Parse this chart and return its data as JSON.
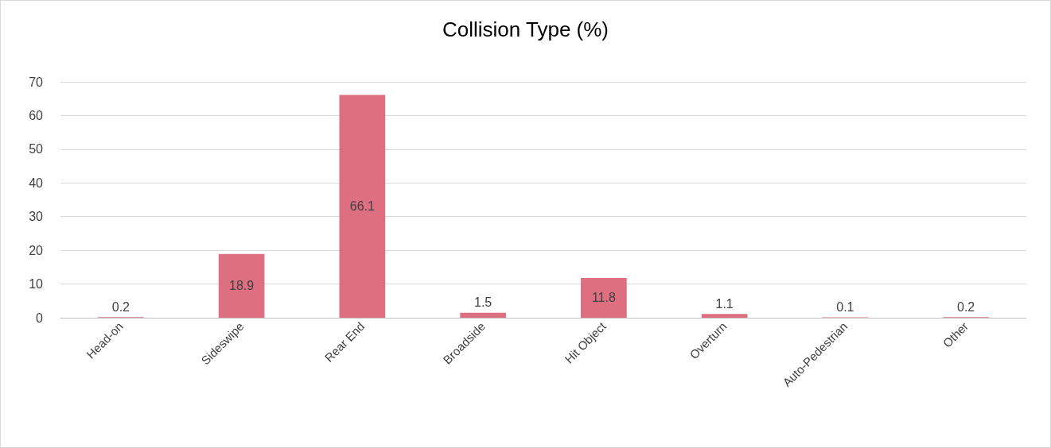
{
  "chart_data": {
    "type": "bar",
    "title": "Collision Type (%)",
    "categories": [
      "Head-on",
      "Sideswipe",
      "Rear End",
      "Broadside",
      "Hit Object",
      "Overturn",
      "Auto-Pedestrian",
      "Other"
    ],
    "values": [
      0.2,
      18.9,
      66.1,
      1.5,
      11.8,
      1.1,
      0.1,
      0.2
    ],
    "color": "#dd6f80",
    "ylim": [
      0,
      70
    ],
    "yticks": [
      0,
      10,
      20,
      30,
      40,
      50,
      60,
      70
    ],
    "grid": "y",
    "data_labels": true
  }
}
